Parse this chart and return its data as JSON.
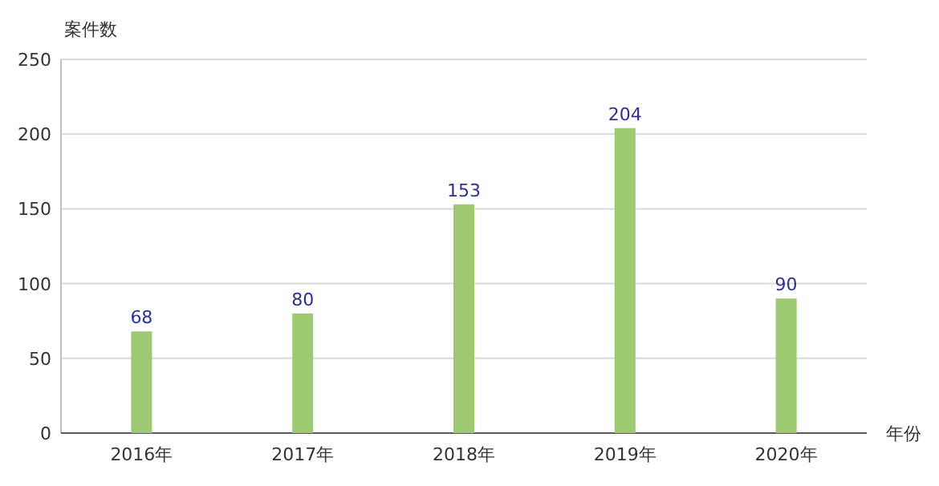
{
  "chart_data": {
    "type": "bar",
    "xlabel": "年份",
    "ylabel": "案件数",
    "categories": [
      "2016年",
      "2017年",
      "2018年",
      "2019年",
      "2020年"
    ],
    "values": [
      68,
      80,
      153,
      204,
      90
    ],
    "color": "#9dc970",
    "ylim": [
      0,
      250
    ],
    "yticks": [
      0,
      50,
      100,
      150,
      200,
      250
    ],
    "grid": "y",
    "data_labels": true
  }
}
